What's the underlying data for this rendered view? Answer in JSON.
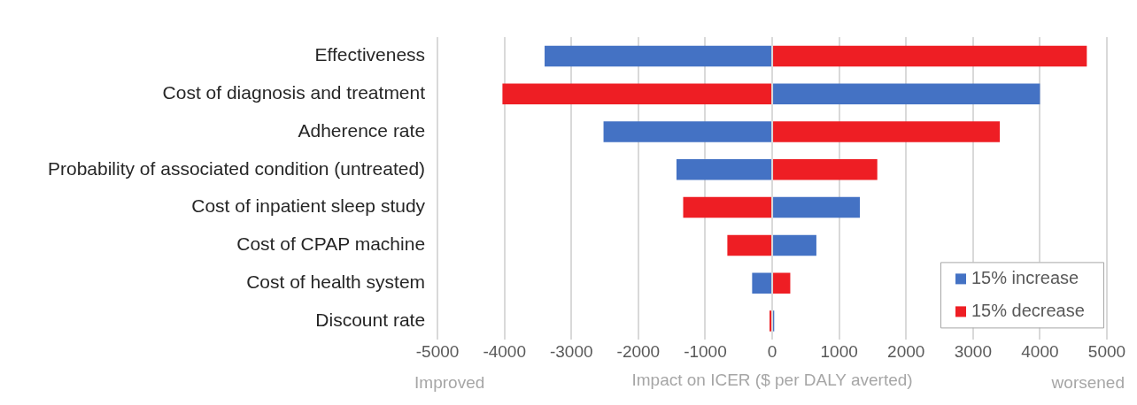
{
  "chart_data": {
    "type": "bar",
    "orientation": "horizontal",
    "stacked": true,
    "categories": [
      "Effectiveness",
      "Cost of diagnosis and treatment",
      "Adherence rate",
      "Probability of associated condition (untreated)",
      "Cost of inpatient sleep study",
      "Cost of CPAP machine",
      "Cost of health system",
      "Discount rate"
    ],
    "series": [
      {
        "name": "15% increase",
        "color": "#4472c4",
        "values": [
          -3400,
          4000,
          -2520,
          -1430,
          1310,
          660,
          -300,
          30
        ]
      },
      {
        "name": "15% decrease",
        "color": "#ee1e24",
        "values": [
          4700,
          -4030,
          3400,
          1570,
          -1330,
          -670,
          270,
          -40
        ]
      }
    ],
    "xlabel": "Impact on ICER ($ per DALY averted)",
    "xlim": [
      -5000,
      5000
    ],
    "xticks": [
      -5000,
      -4000,
      -3000,
      -2000,
      -1000,
      0,
      1000,
      2000,
      3000,
      4000,
      5000
    ],
    "annotations": [
      "Improved",
      "worsened"
    ],
    "grid": "x",
    "legend": "bottom right"
  }
}
